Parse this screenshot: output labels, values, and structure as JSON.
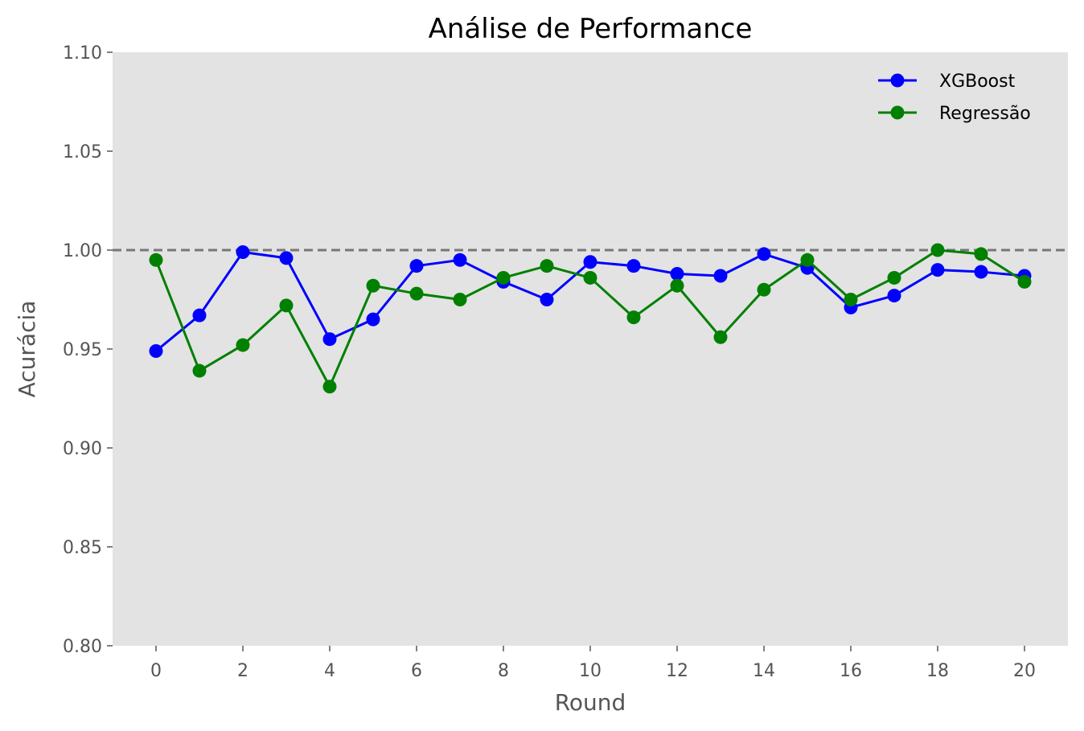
{
  "chart_data": {
    "type": "line",
    "title": "Análise de Performance",
    "xlabel": "Round",
    "ylabel": "Acurácia",
    "xlim": [
      -1,
      21
    ],
    "ylim": [
      0.8,
      1.1
    ],
    "xticks": [
      0,
      2,
      4,
      6,
      8,
      10,
      12,
      14,
      16,
      18,
      20
    ],
    "yticks": [
      0.8,
      0.85,
      0.9,
      0.95,
      1.0,
      1.05,
      1.1
    ],
    "ytick_labels": [
      "0.80",
      "0.85",
      "0.90",
      "0.95",
      "1.00",
      "1.05",
      "1.10"
    ],
    "reference_line": {
      "y": 1.0,
      "style": "dashed",
      "color": "#777777"
    },
    "grid": false,
    "legend_position": "top-right",
    "background": "#e3e3e3",
    "x": [
      0,
      1,
      2,
      3,
      4,
      5,
      6,
      7,
      8,
      9,
      10,
      11,
      12,
      13,
      14,
      15,
      16,
      17,
      18,
      19,
      20
    ],
    "series": [
      {
        "name": "XGBoost",
        "color": "#0000ff",
        "values": [
          0.949,
          0.967,
          0.999,
          0.996,
          0.955,
          0.965,
          0.992,
          0.995,
          0.984,
          0.975,
          0.994,
          0.992,
          0.988,
          0.987,
          0.998,
          0.991,
          0.971,
          0.977,
          0.99,
          0.989,
          0.987
        ]
      },
      {
        "name": "Regressão",
        "color": "#008000",
        "values": [
          0.995,
          0.939,
          0.952,
          0.972,
          0.931,
          0.982,
          0.978,
          0.975,
          0.986,
          0.992,
          0.986,
          0.966,
          0.982,
          0.956,
          0.98,
          0.995,
          0.975,
          0.986,
          1.0,
          0.998,
          0.984
        ]
      }
    ]
  }
}
